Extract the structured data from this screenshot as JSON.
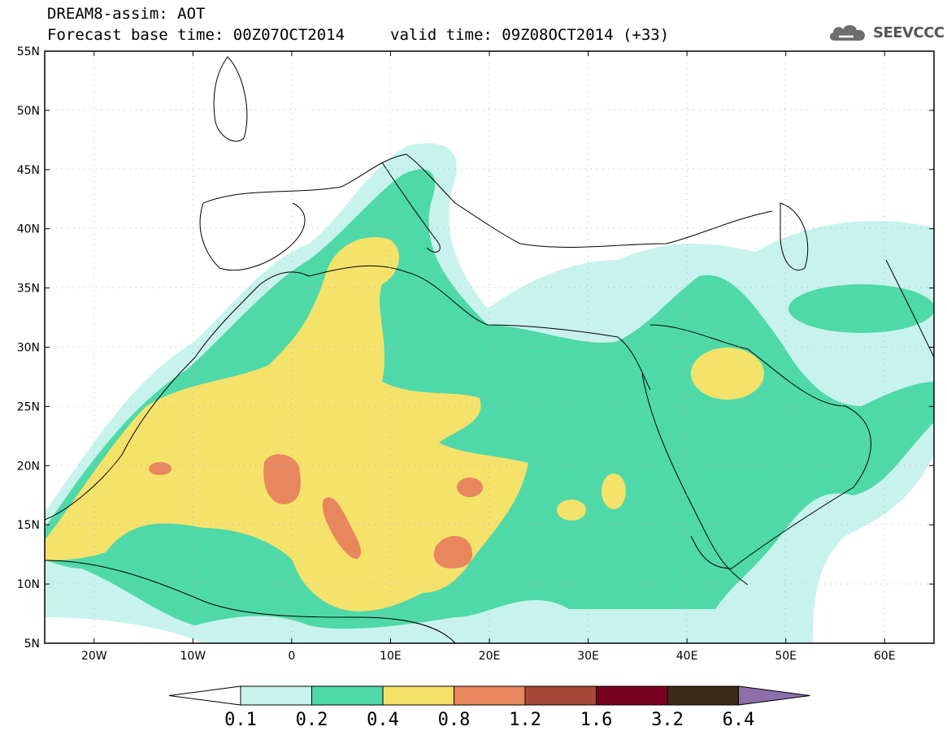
{
  "header": {
    "title": "DREAM8-assim: AOT",
    "base_time": "Forecast base time: 00Z07OCT2014",
    "valid_time": "valid time: 09Z08OCT2014 (+33)"
  },
  "logo": {
    "text": "SEEVCCC",
    "icon": "cloud-icon"
  },
  "map": {
    "lon_range": [
      -25,
      65
    ],
    "lat_range": [
      5,
      55
    ],
    "lat_ticks": [
      "5N",
      "10N",
      "15N",
      "20N",
      "25N",
      "30N",
      "35N",
      "40N",
      "45N",
      "50N",
      "55N"
    ],
    "lon_ticks": [
      "20W",
      "10W",
      "0",
      "10E",
      "20E",
      "30E",
      "40E",
      "50E",
      "60E"
    ]
  },
  "colorbar": {
    "labels": [
      "0.1",
      "0.2",
      "0.4",
      "0.8",
      "1.2",
      "1.6",
      "3.2",
      "6.4"
    ],
    "colors": [
      "#c8f3ec",
      "#4fd9a8",
      "#f5e26b",
      "#e8865e",
      "#a84839",
      "#780021",
      "#3d2915",
      "#8f6fa8"
    ]
  }
}
